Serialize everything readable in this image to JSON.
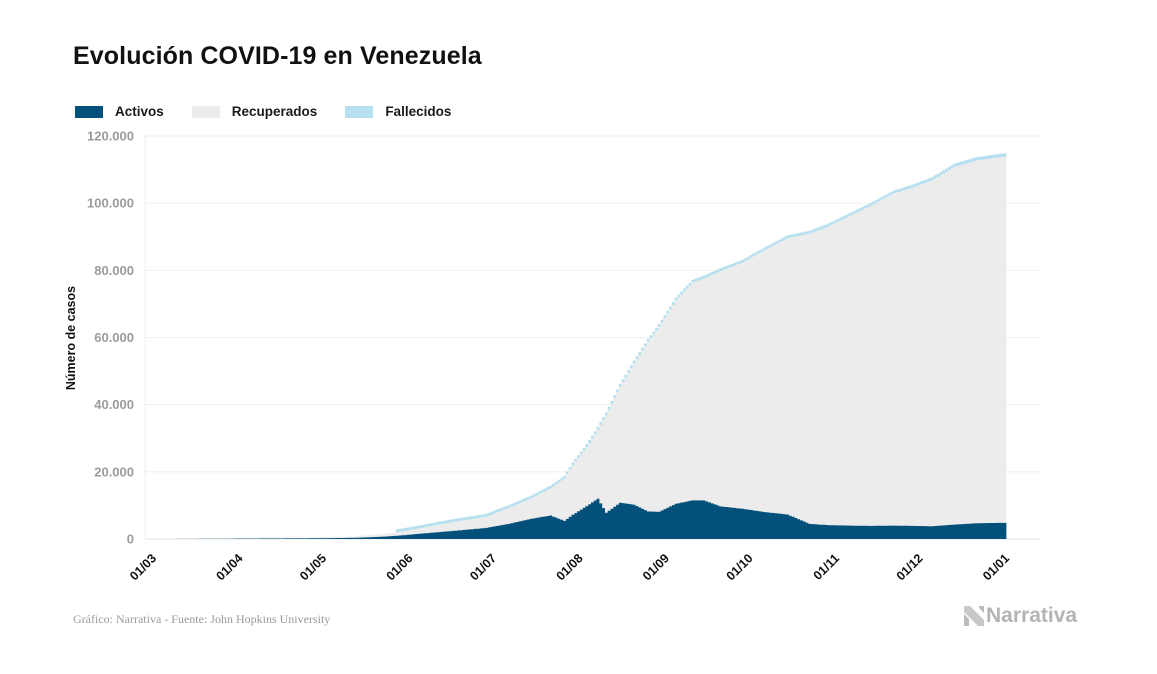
{
  "title": "Evolución COVID-19 en Venezuela",
  "legend": [
    {
      "label": "Activos",
      "color": "#03507a"
    },
    {
      "label": "Recuperados",
      "color": "#ececec"
    },
    {
      "label": "Fallecidos",
      "color": "#b6e0ef"
    }
  ],
  "footer": {
    "source": "Gráfico: Narrativa - Fuente: John Hopkins University",
    "brand": "Narrativa"
  },
  "chart_data": {
    "type": "area",
    "stacked": true,
    "title": "Evolución COVID-19 en Venezuela",
    "xlabel": "",
    "ylabel": "Número de casos",
    "ylim": [
      0,
      120000
    ],
    "yticks": [
      0,
      20000,
      40000,
      60000,
      80000,
      100000,
      120000
    ],
    "ytick_labels": [
      "0",
      "20.000",
      "40.000",
      "60.000",
      "80.000",
      "100.000",
      "120.000"
    ],
    "xtick_labels": [
      "01/03",
      "01/04",
      "01/05",
      "01/06",
      "01/07",
      "01/08",
      "01/09",
      "01/10",
      "01/11",
      "01/12",
      "01/01"
    ],
    "x_unit": "days since 01/03",
    "xlim": [
      0,
      306
    ],
    "xtick_days": [
      0,
      31,
      61,
      92,
      122,
      153,
      184,
      214,
      245,
      275,
      306
    ],
    "grid": true,
    "legend_position": "top-left",
    "x": [
      0,
      14,
      30,
      45,
      61,
      75,
      85,
      92,
      100,
      110,
      122,
      130,
      138,
      145,
      150,
      153,
      158,
      162,
      165,
      170,
      175,
      180,
      184,
      190,
      196,
      200,
      206,
      214,
      222,
      230,
      238,
      245,
      252,
      260,
      268,
      275,
      282,
      290,
      298,
      306,
      308
    ],
    "series": [
      {
        "name": "Activos",
        "color": "#03507a",
        "values": [
          0,
          20,
          100,
          150,
          200,
          350,
          700,
          1100,
          1700,
          2400,
          3300,
          4500,
          6000,
          7000,
          5400,
          7200,
          9800,
          12000,
          7800,
          10800,
          10200,
          8200,
          8100,
          10500,
          11500,
          11500,
          9700,
          9000,
          8000,
          7300,
          4500,
          4100,
          4000,
          3900,
          4000,
          3900,
          3800,
          4300,
          4700,
          4800,
          4800
        ]
      },
      {
        "name": "Recuperados",
        "color": "#ececec",
        "values": [
          0,
          20,
          150,
          250,
          250,
          400,
          750,
          1150,
          1750,
          2600,
          3300,
          4700,
          6000,
          8000,
          12500,
          14700,
          17500,
          20500,
          29000,
          34500,
          42000,
          50500,
          55000,
          60500,
          64800,
          66000,
          70000,
          73300,
          78000,
          82200,
          86400,
          89000,
          92000,
          95300,
          98800,
          100700,
          103000,
          106500,
          108000,
          108800,
          109000
        ]
      },
      {
        "name": "Fallecidos",
        "color": "#b6e0ef",
        "values": [
          0,
          0,
          10,
          10,
          10,
          20,
          30,
          40,
          50,
          70,
          90,
          110,
          130,
          150,
          180,
          200,
          230,
          260,
          290,
          340,
          390,
          450,
          500,
          560,
          590,
          610,
          640,
          680,
          720,
          750,
          780,
          800,
          820,
          860,
          900,
          950,
          980,
          1010,
          1040,
          1060,
          1070
        ]
      }
    ]
  }
}
